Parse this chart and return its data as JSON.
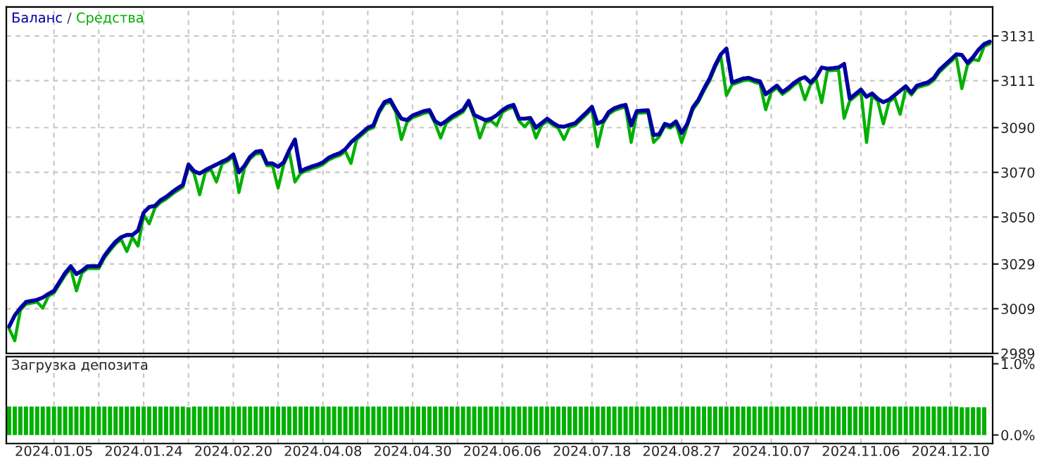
{
  "chart_data": [
    {
      "type": "line",
      "annotations": [
        "/"
      ],
      "legend": "top left",
      "grid": true,
      "tick_labels": "y",
      "categories": [
        null,
        null,
        null,
        null,
        null,
        null,
        null,
        null,
        "2024.01.05",
        null,
        null,
        null,
        null,
        null,
        null,
        null,
        null,
        null,
        null,
        null,
        null,
        null,
        null,
        null,
        "2024.01.24",
        null,
        null,
        null,
        null,
        null,
        null,
        null,
        null,
        null,
        null,
        null,
        null,
        null,
        null,
        null,
        "2024.02.20",
        null,
        null,
        null,
        null,
        null,
        null,
        null,
        null,
        null,
        null,
        null,
        null,
        null,
        null,
        null,
        "2024.04.08",
        null,
        null,
        null,
        null,
        null,
        null,
        null,
        null,
        null,
        null,
        null,
        null,
        null,
        null,
        null,
        "2024.04.30",
        null,
        null,
        null,
        null,
        null,
        null,
        null,
        null,
        null,
        null,
        null,
        null,
        null,
        null,
        null,
        "2024.06.06",
        null,
        null,
        null,
        null,
        null,
        null,
        null,
        null,
        null,
        null,
        null,
        null,
        null,
        null,
        null,
        "2024.07.18",
        null,
        null,
        null,
        null,
        null,
        null,
        null,
        null,
        null,
        null,
        null,
        null,
        null,
        null,
        null,
        "2024.08.27",
        null,
        null,
        null,
        null,
        null,
        null,
        null,
        null,
        null,
        null,
        null,
        null,
        null,
        null,
        null,
        "2024.10.07",
        null,
        null,
        null,
        null,
        null,
        null,
        null,
        null,
        null,
        null,
        null,
        null,
        null,
        null,
        null,
        "2024.11.06",
        null,
        null,
        null,
        null,
        null,
        null,
        null,
        null,
        null,
        null,
        null,
        null,
        null,
        null,
        null,
        "2024.12.10",
        null,
        null,
        null,
        null,
        null,
        null,
        null
      ],
      "ylim": [
        2989,
        3144
      ],
      "yticks": [
        2989,
        3009,
        3029,
        3050,
        3070,
        3090,
        3111,
        3131
      ],
      "series": [
        {
          "name": "Баланс",
          "color": "#0000a0",
          "values": [
            3001,
            3006,
            3009.3,
            3012,
            3012.5,
            3013,
            3014,
            3015.6,
            3017,
            3021,
            3025,
            3028,
            3024.5,
            3026,
            3028,
            3028,
            3028,
            3032.7,
            3036,
            3039,
            3041,
            3042,
            3042,
            3044,
            3052,
            3054.5,
            3055,
            3057.5,
            3059,
            3061,
            3062.8,
            3064.4,
            3073.5,
            3070.5,
            3069.5,
            3071,
            3072.3,
            3073.5,
            3074.8,
            3076,
            3078,
            3070,
            3073,
            3077,
            3079.2,
            3079.6,
            3074,
            3074,
            3072.5,
            3074.5,
            3080,
            3084.7,
            3070.5,
            3071.7,
            3072.6,
            3073.4,
            3074.5,
            3076.5,
            3077.7,
            3078.6,
            3080.4,
            3083.4,
            3085.6,
            3087.8,
            3090,
            3091,
            3097.4,
            3101.5,
            3102.5,
            3098,
            3094,
            3093.4,
            3095.5,
            3096.4,
            3097.4,
            3097.9,
            3093,
            3091.4,
            3093,
            3095,
            3096.5,
            3098,
            3102,
            3095.7,
            3094.5,
            3093.3,
            3094,
            3095.6,
            3097.8,
            3099.4,
            3100.2,
            3094,
            3094,
            3094.3,
            3090,
            3092,
            3094,
            3092.2,
            3090.7,
            3090.4,
            3091.2,
            3092,
            3094.4,
            3096.8,
            3099.3,
            3091.8,
            3093,
            3097,
            3098.7,
            3099.6,
            3100.2,
            3091,
            3097.4,
            3097.6,
            3097.8,
            3086.7,
            3087,
            3091.7,
            3090.8,
            3092.8,
            3087.6,
            3091.7,
            3099,
            3102.5,
            3107.5,
            3112,
            3118,
            3122.8,
            3125.4,
            3110.2,
            3111.1,
            3112,
            3112.3,
            3111.3,
            3110.7,
            3104.9,
            3106.9,
            3108.8,
            3105.9,
            3107.7,
            3109.9,
            3111.6,
            3112.6,
            3110.2,
            3112.6,
            3116.9,
            3116.4,
            3116.6,
            3116.9,
            3118.5,
            3103,
            3105,
            3107,
            3103.8,
            3105.3,
            3102.9,
            3101.4,
            3102.5,
            3104.5,
            3106.5,
            3108.5,
            3105.6,
            3108.8,
            3109.6,
            3110.3,
            3112.2,
            3115.8,
            3118.1,
            3120.4,
            3122.8,
            3122.5,
            3119,
            3121.5,
            3124.9,
            3127.4,
            3128.5
          ]
        },
        {
          "name": "Средства",
          "color": "#00b000",
          "values": [
            3000,
            2994.7,
            3008.3,
            3011,
            3011.5,
            3012,
            3009.3,
            3014.6,
            3016,
            3020,
            3024,
            3027,
            3017,
            3025,
            3027,
            3027,
            3027,
            3031.7,
            3035,
            3038,
            3040,
            3034.6,
            3041,
            3037,
            3051,
            3047,
            3054,
            3056.5,
            3058,
            3060,
            3061.8,
            3063.4,
            3072.5,
            3069.5,
            3060,
            3070,
            3071.3,
            3065.7,
            3073.8,
            3075,
            3077,
            3061,
            3072,
            3076,
            3078.2,
            3078.6,
            3073,
            3073,
            3063,
            3073.5,
            3079,
            3065.7,
            3069.5,
            3070.7,
            3071.6,
            3072.4,
            3073.5,
            3075.5,
            3076.7,
            3077.6,
            3079.4,
            3074,
            3084.6,
            3086.8,
            3089,
            3090,
            3096.4,
            3100.5,
            3101.5,
            3097,
            3084.7,
            3092.4,
            3094.5,
            3095.4,
            3096.4,
            3096.9,
            3092,
            3085.4,
            3092,
            3094,
            3095.5,
            3097,
            3101,
            3094.7,
            3085.4,
            3092.3,
            3093,
            3091,
            3096.8,
            3098.4,
            3099.2,
            3093,
            3090.4,
            3093.3,
            3085.4,
            3091,
            3093,
            3091.2,
            3089.7,
            3084.7,
            3090.2,
            3091,
            3093.4,
            3095.8,
            3098.3,
            3081.5,
            3092,
            3096,
            3097.7,
            3098.6,
            3099.2,
            3083.4,
            3096.4,
            3096.6,
            3096.8,
            3083.4,
            3086,
            3090.7,
            3089.8,
            3091.8,
            3083.4,
            3090.7,
            3098,
            3101.5,
            3106.5,
            3111,
            3117,
            3121.8,
            3104.4,
            3109.2,
            3110.1,
            3111,
            3111.3,
            3110.3,
            3109.7,
            3098,
            3105.9,
            3107.8,
            3104.9,
            3106.7,
            3108.9,
            3110.6,
            3102.5,
            3109.2,
            3111.6,
            3101.2,
            3115.4,
            3115.6,
            3115.9,
            3094.2,
            3102,
            3104,
            3106,
            3083.4,
            3104.3,
            3101.9,
            3091.7,
            3101.5,
            3103.5,
            3096,
            3107.5,
            3104.6,
            3107.8,
            3108.6,
            3109.3,
            3111.2,
            3114.8,
            3117.1,
            3119.4,
            3121.8,
            3107.5,
            3118,
            3120.5,
            3120,
            3126.4,
            3127.5
          ]
        }
      ]
    },
    {
      "type": "bar",
      "title": "Загрузка депозита",
      "grid": "x",
      "categories": [
        null,
        null,
        null,
        null,
        null,
        null,
        null,
        null,
        "2024.01.05",
        null,
        null,
        null,
        null,
        null,
        null,
        null,
        null,
        null,
        null,
        null,
        null,
        null,
        null,
        null,
        "2024.01.24",
        null,
        null,
        null,
        null,
        null,
        null,
        null,
        null,
        null,
        null,
        null,
        null,
        null,
        null,
        null,
        "2024.02.20",
        null,
        null,
        null,
        null,
        null,
        null,
        null,
        null,
        null,
        null,
        null,
        null,
        null,
        null,
        null,
        "2024.04.08",
        null,
        null,
        null,
        null,
        null,
        null,
        null,
        null,
        null,
        null,
        null,
        null,
        null,
        null,
        null,
        "2024.04.30",
        null,
        null,
        null,
        null,
        null,
        null,
        null,
        null,
        null,
        null,
        null,
        null,
        null,
        null,
        null,
        "2024.06.06",
        null,
        null,
        null,
        null,
        null,
        null,
        null,
        null,
        null,
        null,
        null,
        null,
        null,
        null,
        null,
        "2024.07.18",
        null,
        null,
        null,
        null,
        null,
        null,
        null,
        null,
        null,
        null,
        null,
        null,
        null,
        null,
        null,
        "2024.08.27",
        null,
        null,
        null,
        null,
        null,
        null,
        null,
        null,
        null,
        null,
        null,
        null,
        null,
        null,
        null,
        "2024.10.07",
        null,
        null,
        null,
        null,
        null,
        null,
        null,
        null,
        null,
        null,
        null,
        null,
        null,
        null,
        null,
        "2024.11.06",
        null,
        null,
        null,
        null,
        null,
        null,
        null,
        null,
        null,
        null,
        null,
        null,
        null,
        null,
        null,
        "2024.12.10",
        null,
        null,
        null,
        null,
        null,
        null,
        null
      ],
      "ylim": [
        -0.12,
        1.1
      ],
      "yticks": [
        {
          "value": 0,
          "label": "0.0%"
        },
        {
          "value": 1,
          "label": "1.0%"
        }
      ],
      "series": [
        {
          "color": "#00b000",
          "values": [
            0.4,
            0.4,
            0.4,
            0.4,
            0.4,
            0.4,
            0.4,
            0.4,
            0.4,
            0.4,
            0.4,
            0.4,
            0.4,
            0.4,
            0.4,
            0.4,
            0.4,
            0.4,
            0.4,
            0.4,
            0.4,
            0.4,
            0.4,
            0.4,
            0.4,
            0.4,
            0.4,
            0.4,
            0.4,
            0.4,
            0.4,
            0.4,
            0.39,
            0.4,
            0.4,
            0.4,
            0.4,
            0.4,
            0.4,
            0.4,
            0.4,
            0.4,
            0.4,
            0.4,
            0.4,
            0.4,
            0.4,
            0.4,
            0.4,
            0.4,
            0.4,
            0.4,
            0.4,
            0.4,
            0.4,
            0.4,
            0.4,
            0.4,
            0.4,
            0.4,
            0.4,
            0.4,
            0.4,
            0.4,
            0.4,
            0.4,
            0.4,
            0.4,
            0.4,
            0.4,
            0.4,
            0.4,
            0.4,
            0.4,
            0.4,
            0.4,
            0.4,
            0.4,
            0.4,
            0.4,
            0.4,
            0.4,
            0.4,
            0.4,
            0.4,
            0.4,
            0.4,
            0.4,
            0.4,
            0.4,
            0.4,
            0.4,
            0.4,
            0.4,
            0.4,
            0.4,
            0.4,
            0.4,
            0.4,
            0.4,
            0.4,
            0.4,
            0.4,
            0.4,
            0.4,
            0.4,
            0.4,
            0.4,
            0.4,
            0.4,
            0.4,
            0.4,
            0.4,
            0.4,
            0.4,
            0.4,
            0.4,
            0.4,
            0.4,
            0.4,
            0.4,
            0.4,
            0.4,
            0.4,
            0.4,
            0.4,
            0.4,
            0.4,
            0.4,
            0.4,
            0.4,
            0.4,
            0.4,
            0.4,
            0.4,
            0.4,
            0.4,
            0.4,
            0.4,
            0.4,
            0.4,
            0.4,
            0.4,
            0.4,
            0.4,
            0.4,
            0.4,
            0.4,
            0.4,
            0.4,
            0.4,
            0.4,
            0.4,
            0.4,
            0.4,
            0.4,
            0.4,
            0.4,
            0.4,
            0.4,
            0.4,
            0.4,
            0.4,
            0.4,
            0.4,
            0.4,
            0.4,
            0.4,
            0.4,
            0.4,
            0.39,
            0.39,
            0.39,
            0.39,
            0.39,
            null
          ]
        }
      ]
    }
  ]
}
